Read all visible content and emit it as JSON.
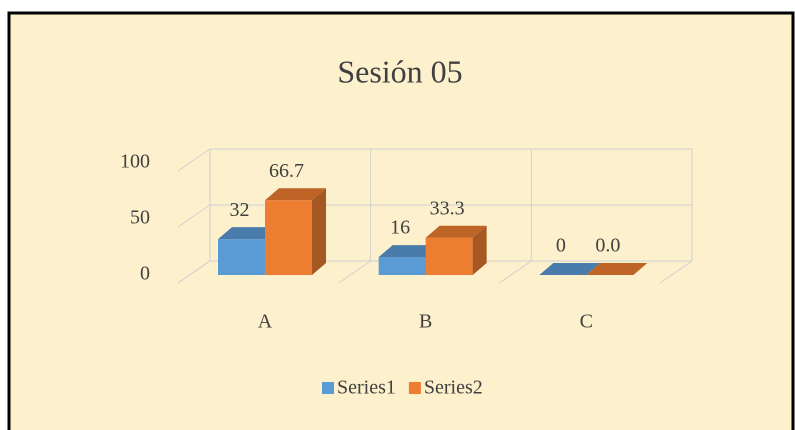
{
  "chart_data": {
    "type": "bar3d",
    "title": "Sesión 05",
    "categories": [
      "A",
      "B",
      "C"
    ],
    "series": [
      {
        "name": "Series1",
        "color": "#5b9bd5",
        "values": [
          32,
          16,
          0
        ]
      },
      {
        "name": "Series2",
        "color": "#ed7d31",
        "values": [
          66.7,
          33.3,
          0
        ],
        "value_labels": [
          "66.7",
          "33.3",
          "0.0"
        ]
      }
    ],
    "ylim": [
      0,
      100
    ],
    "yticks": [
      0,
      50,
      100
    ],
    "grid": true,
    "legend": "bottom"
  }
}
